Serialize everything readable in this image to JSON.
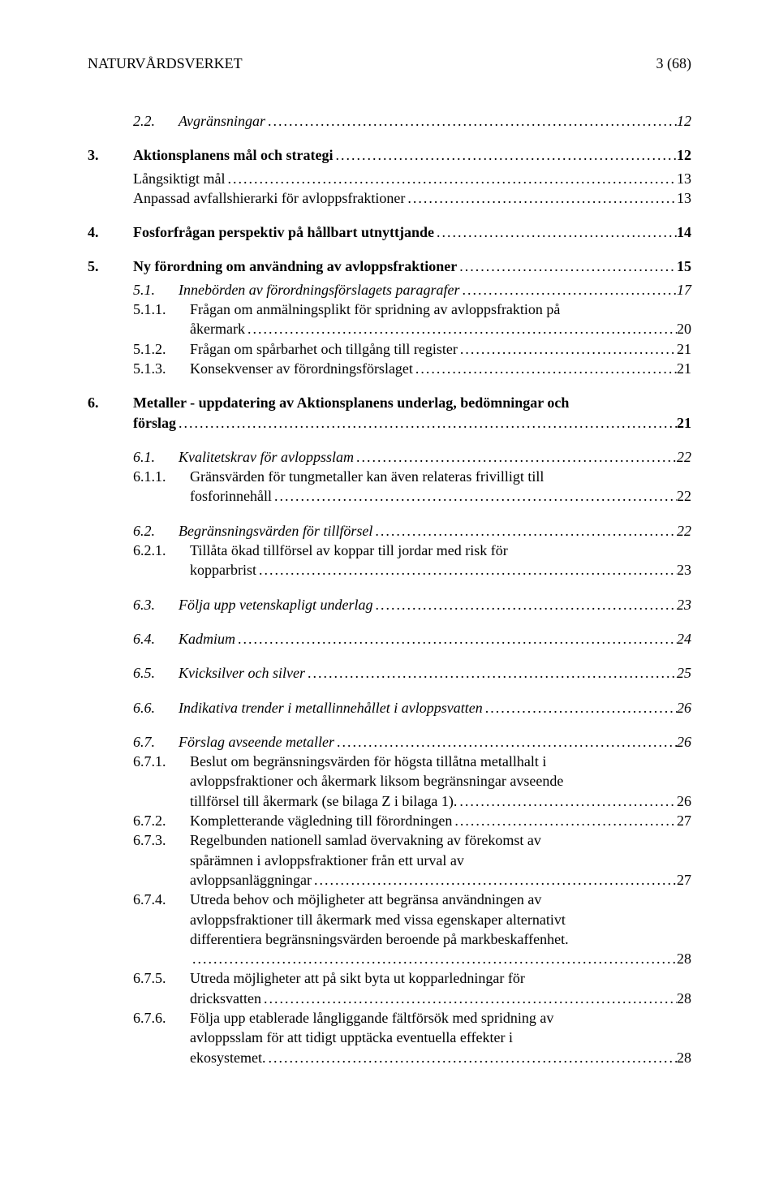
{
  "header": {
    "left": "NATURVÅRDSVERKET",
    "right": "3 (68)"
  },
  "toc": [
    {
      "num": "2.2.",
      "label": "Avgränsningar",
      "page": "12",
      "level": 2,
      "style": "italic",
      "gap": "none"
    },
    {
      "num": "3.",
      "label": "Aktionsplanens mål och strategi",
      "page": "12",
      "level": 0,
      "style": "bold",
      "gap": "md"
    },
    {
      "num": "",
      "label": "Långsiktigt mål",
      "page": "13",
      "level": 1,
      "style": "",
      "gap": "sm"
    },
    {
      "num": "",
      "label": "Anpassad avfallshierarki för avloppsfraktioner",
      "page": "13",
      "level": 1,
      "style": "",
      "gap": "none"
    },
    {
      "num": "4.",
      "label": "Fosforfrågan perspektiv på hållbart utnyttjande",
      "page": "14",
      "level": 0,
      "style": "bold",
      "gap": "md"
    },
    {
      "num": "5.",
      "label": "Ny förordning om användning av avloppsfraktioner",
      "page": "15",
      "level": 0,
      "style": "bold",
      "gap": "md"
    },
    {
      "num": "5.1.",
      "label": "Innebörden av förordningsförslagets paragrafer",
      "page": "17",
      "level": 2,
      "style": "italic",
      "gap": "sm"
    },
    {
      "num": "5.1.1.",
      "label": "Frågan om anmälningsplikt för spridning av avloppsfraktion på",
      "cont": "åkermark",
      "page": "20",
      "level": 3,
      "style": "",
      "gap": "none"
    },
    {
      "num": "5.1.2.",
      "label": "Frågan om spårbarhet och tillgång till register",
      "page": "21",
      "level": 3,
      "style": "",
      "gap": "none"
    },
    {
      "num": "5.1.3.",
      "label": "Konsekvenser av förordningsförslaget",
      "page": "21",
      "level": 3,
      "style": "",
      "gap": "none"
    },
    {
      "num": "6.",
      "label": "Metaller - uppdatering av Aktionsplanens underlag, bedömningar och",
      "cont": "förslag",
      "page": "21",
      "level": 0,
      "style": "bold",
      "gap": "md"
    },
    {
      "num": "6.1.",
      "label": "Kvalitetskrav för avloppsslam",
      "page": "22",
      "level": 2,
      "style": "italic",
      "gap": "md"
    },
    {
      "num": "6.1.1.",
      "label": "Gränsvärden för tungmetaller kan även relateras frivilligt till",
      "cont": "fosforinnehåll",
      "page": "22",
      "level": 3,
      "style": "",
      "gap": "none"
    },
    {
      "num": "6.2.",
      "label": "Begränsningsvärden för tillförsel",
      "page": "22",
      "level": 2,
      "style": "italic",
      "gap": "md"
    },
    {
      "num": "6.2.1.",
      "label": "Tillåta ökad tillförsel av koppar till jordar med risk för",
      "cont": "kopparbrist",
      "page": "23",
      "level": 3,
      "style": "",
      "gap": "none"
    },
    {
      "num": "6.3.",
      "label": "Följa upp vetenskapligt underlag",
      "page": "23",
      "level": 2,
      "style": "italic",
      "gap": "md"
    },
    {
      "num": "6.4.",
      "label": "Kadmium",
      "page": "24",
      "level": 2,
      "style": "italic",
      "gap": "md"
    },
    {
      "num": "6.5.",
      "label": "Kvicksilver och silver",
      "page": "25",
      "level": 2,
      "style": "italic",
      "gap": "md"
    },
    {
      "num": "6.6.",
      "label": "Indikativa trender i metallinnehållet i avloppsvatten",
      "page": "26",
      "level": 2,
      "style": "italic",
      "gap": "md"
    },
    {
      "num": "6.7.",
      "label": "Förslag avseende metaller",
      "page": "26",
      "level": 2,
      "style": "italic",
      "gap": "md"
    },
    {
      "num": "6.7.1.",
      "label": "Beslut om begränsningsvärden för högsta tillåtna metallhalt i",
      "cont": "avloppsfraktioner och åkermark liksom begränsningar avseende\ntillförsel till åkermark (se bilaga Z i bilaga 1).",
      "page": "26",
      "level": 3,
      "style": "",
      "gap": "none"
    },
    {
      "num": "6.7.2.",
      "label": "Kompletterande vägledning till förordningen",
      "page": "27",
      "level": 3,
      "style": "",
      "gap": "none"
    },
    {
      "num": "6.7.3.",
      "label": "Regelbunden nationell samlad övervakning av förekomst av",
      "cont": "spårämnen i avloppsfraktioner från ett urval av\navloppsanläggningar",
      "page": "27",
      "level": 3,
      "style": "",
      "gap": "none"
    },
    {
      "num": "6.7.4.",
      "label": "Utreda behov och möjligheter att begränsa användningen av",
      "cont": "avloppsfraktioner till åkermark med vissa egenskaper alternativt\ndifferentiera begränsningsvärden beroende på markbeskaffenhet.\n",
      "page": "28",
      "level": 3,
      "style": "",
      "gap": "none"
    },
    {
      "num": "6.7.5.",
      "label": "Utreda möjligheter att på sikt byta ut kopparledningar för",
      "cont": "dricksvatten",
      "page": "28",
      "level": 3,
      "style": "",
      "gap": "none"
    },
    {
      "num": "6.7.6.",
      "label": "Följa upp etablerade långliggande fältförsök med spridning av",
      "cont": "avloppsslam för att tidigt upptäcka eventuella effekter i\nekosystemet.",
      "page": "28",
      "level": 3,
      "style": "",
      "gap": "none"
    }
  ]
}
